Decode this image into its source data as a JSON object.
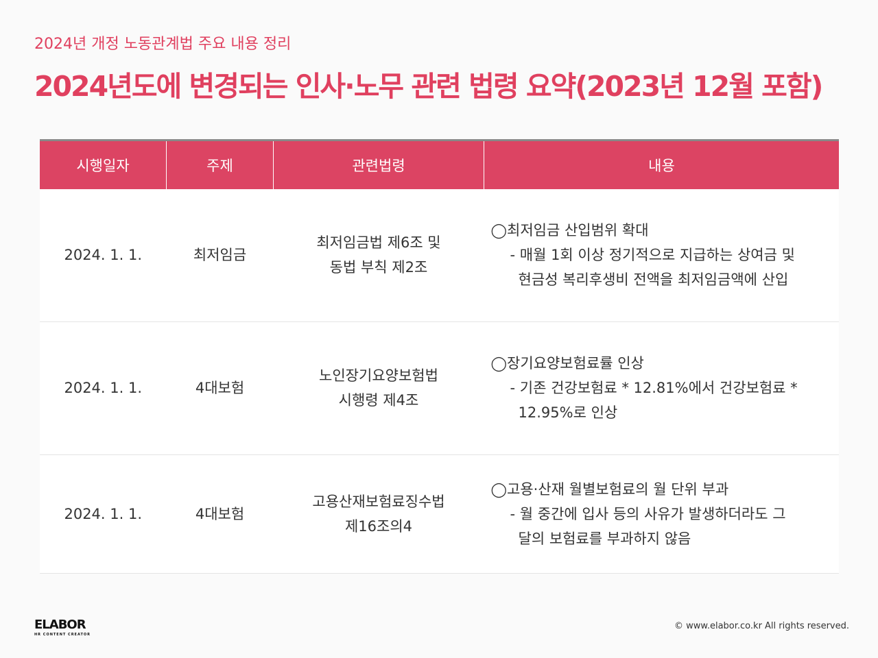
{
  "subtitle": "2024년 개정 노동관계법 주요 내용 정리",
  "title": "2024년도에 변경되는 인사·노무 관련 법령 요약(2023년 12월 포함)",
  "table": {
    "headers": [
      "시행일자",
      "주제",
      "관련법령",
      "내용"
    ],
    "rows": [
      {
        "date": "2024. 1. 1.",
        "topic": "최저임금",
        "law": [
          "최저임금법 제6조 및",
          "동법 부칙 제2조"
        ],
        "content": [
          "◯최저임금 산입범위 확대",
          "- 매월 1회 이상 정기적으로 지급하는 상여금 및",
          "현금성 복리후생비 전액을 최저임금액에 산입"
        ]
      },
      {
        "date": "2024. 1. 1.",
        "topic": "4대보험",
        "law": [
          "노인장기요양보험법",
          "시행령 제4조"
        ],
        "content": [
          "◯장기요양보험료률 인상",
          "- 기존 건강보험료 * 12.81%에서 건강보험료 *",
          "12.95%로 인상"
        ]
      },
      {
        "date": "2024. 1. 1.",
        "topic": "4대보험",
        "law": [
          "고용산재보험료징수법",
          "제16조의4"
        ],
        "content": [
          "◯고용·산재 월별보험료의 월 단위 부과",
          "- 월 중간에 입사 등의 사유가 발생하더라도 그",
          "달의 보험료를 부과하지 않음"
        ]
      }
    ]
  },
  "footer": {
    "logo": "ELABOR",
    "logo_tagline": "HR CONTENT CREATOR",
    "copyright": "© www.elabor.co.kr All rights reserved."
  },
  "colors": {
    "accent": "#e0405f",
    "header_bg": "#dc4463"
  }
}
